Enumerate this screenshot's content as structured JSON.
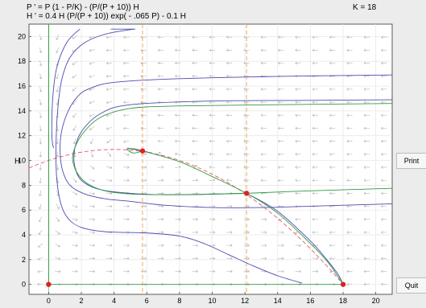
{
  "equations": {
    "p_prime": "P ' = P (1 - P/K) - (P/(P + 10)) H",
    "h_prime": "H ' = 0.4 H (P/(P + 10)) exp( - .065 P) - 0.1 H"
  },
  "parameter_label": "K = 18",
  "buttons": {
    "print": "Print",
    "quit": "Quit"
  },
  "colors": {
    "field_arrow": "#b5b5b5",
    "trajectory": "#4b4bb0",
    "separatrix": "#2e9a3e",
    "p_nullcline": "#e05a6a",
    "h_nullcline": "#f0a050",
    "equilibrium": "#e02020",
    "grid": "#e4e4e4"
  },
  "chart_data": {
    "type": "scatter",
    "title": "",
    "xlabel": "",
    "ylabel": "H",
    "xlim": [
      -1.2,
      21
    ],
    "ylim": [
      -0.8,
      21
    ],
    "grid": true,
    "x_ticks": [
      0,
      2,
      4,
      6,
      8,
      10,
      12,
      14,
      16,
      18,
      20
    ],
    "y_ticks": [
      0,
      2,
      4,
      6,
      8,
      10,
      12,
      14,
      16,
      18,
      20
    ],
    "equilibria": [
      {
        "P": 0,
        "H": 0
      },
      {
        "P": 18,
        "H": 0
      },
      {
        "P": 5.74,
        "H": 10.77
      },
      {
        "P": 12.1,
        "H": 7.35
      }
    ],
    "h_nullclines_vertical": [
      5.74,
      12.1
    ],
    "p_nullcline_axis": 0,
    "trajectories": [
      {
        "kind": "trajectory",
        "points": [
          [
            5.2,
            20.6
          ],
          [
            3.5,
            20.2
          ],
          [
            2.2,
            19.5
          ],
          [
            1.3,
            18.3
          ],
          [
            0.8,
            16.5
          ],
          [
            0.55,
            14
          ],
          [
            0.45,
            11
          ],
          [
            0.5,
            8.5
          ],
          [
            0.75,
            6.5
          ],
          [
            1.2,
            5.3
          ],
          [
            2,
            4.6
          ],
          [
            3.5,
            4.25
          ],
          [
            6,
            4.15
          ],
          [
            8,
            3.9
          ],
          [
            9.5,
            3.3
          ],
          [
            11,
            2.4
          ],
          [
            12.5,
            1.5
          ],
          [
            14,
            0.7
          ],
          [
            15.5,
            0.1
          ]
        ]
      },
      {
        "kind": "trajectory",
        "points": [
          [
            1.9,
            20.6
          ],
          [
            1.1,
            19.5
          ],
          [
            0.5,
            17.5
          ],
          [
            0.25,
            15
          ],
          [
            0.2,
            12
          ],
          [
            0.3,
            11
          ]
        ]
      },
      {
        "kind": "trajectory",
        "points": [
          [
            5.3,
            20.6
          ],
          [
            3.8,
            20.6
          ]
        ]
      },
      {
        "kind": "trajectory",
        "points": [
          [
            21,
            16.9
          ],
          [
            15,
            16.8
          ],
          [
            8,
            16.6
          ],
          [
            4,
            16.3
          ],
          [
            2.5,
            15.8
          ],
          [
            1.8,
            15.2
          ],
          [
            1.2,
            14
          ],
          [
            0.8,
            12.4
          ],
          [
            0.7,
            10.8
          ],
          [
            0.85,
            9.2
          ],
          [
            1.3,
            8
          ],
          [
            2.2,
            7.3
          ],
          [
            3.5,
            6.9
          ],
          [
            5,
            6.7
          ],
          [
            7,
            6.4
          ],
          [
            10,
            6.2
          ],
          [
            13,
            6.2
          ],
          [
            17,
            6.35
          ],
          [
            21,
            6.5
          ]
        ]
      },
      {
        "kind": "trajectory",
        "points": [
          [
            21,
            14.9
          ],
          [
            16,
            14.85
          ],
          [
            10,
            14.8
          ],
          [
            5,
            14.5
          ],
          [
            3.2,
            13.8
          ],
          [
            2.1,
            12.5
          ],
          [
            1.6,
            11
          ],
          [
            1.6,
            9.5
          ],
          [
            2,
            8.4
          ],
          [
            3,
            7.7
          ],
          [
            4.5,
            7.4
          ],
          [
            6.5,
            7.25
          ],
          [
            9,
            7.25
          ],
          [
            12.1,
            7.35
          ]
        ]
      },
      {
        "kind": "trajectory",
        "points": [
          [
            4.8,
            11
          ],
          [
            5.74,
            10.77
          ],
          [
            6.3,
            10.6
          ]
        ]
      },
      {
        "kind": "trajectory",
        "points": [
          [
            12.1,
            7.35
          ],
          [
            14,
            5.9
          ],
          [
            16,
            3.5
          ],
          [
            17,
            2
          ],
          [
            17.7,
            0.8
          ],
          [
            18,
            0
          ]
        ]
      },
      {
        "kind": "separatrix",
        "points": [
          [
            21,
            14.6
          ],
          [
            14,
            14.5
          ],
          [
            8,
            14.4
          ],
          [
            5,
            14.2
          ],
          [
            3.2,
            13.5
          ],
          [
            2.1,
            12.2
          ],
          [
            1.5,
            10.6
          ],
          [
            1.6,
            9.4
          ],
          [
            2.2,
            8.3
          ],
          [
            3.3,
            7.6
          ],
          [
            5,
            7.3
          ],
          [
            8,
            7.25
          ],
          [
            12.1,
            7.35
          ]
        ]
      },
      {
        "kind": "separatrix",
        "points": [
          [
            12.1,
            7.35
          ],
          [
            16,
            7.55
          ],
          [
            21,
            7.75
          ]
        ]
      },
      {
        "kind": "separatrix",
        "points": [
          [
            5.74,
            10.77
          ],
          [
            8,
            9.9
          ],
          [
            10,
            8.7
          ],
          [
            12.1,
            7.35
          ],
          [
            14,
            5.75
          ],
          [
            16,
            3.3
          ],
          [
            17,
            1.9
          ],
          [
            17.6,
            0.8
          ],
          [
            18,
            0
          ]
        ]
      },
      {
        "kind": "separatrix",
        "points": [
          [
            5.74,
            10.77
          ],
          [
            5.2,
            10.95
          ],
          [
            4.8,
            10.9
          ],
          [
            5.2,
            10.6
          ],
          [
            5.74,
            10.77
          ]
        ]
      },
      {
        "kind": "separatrix",
        "points": [
          [
            0,
            0
          ],
          [
            18,
            0
          ]
        ]
      },
      {
        "kind": "separatrix",
        "points": [
          [
            0,
            0
          ],
          [
            0,
            21
          ]
        ]
      }
    ]
  }
}
